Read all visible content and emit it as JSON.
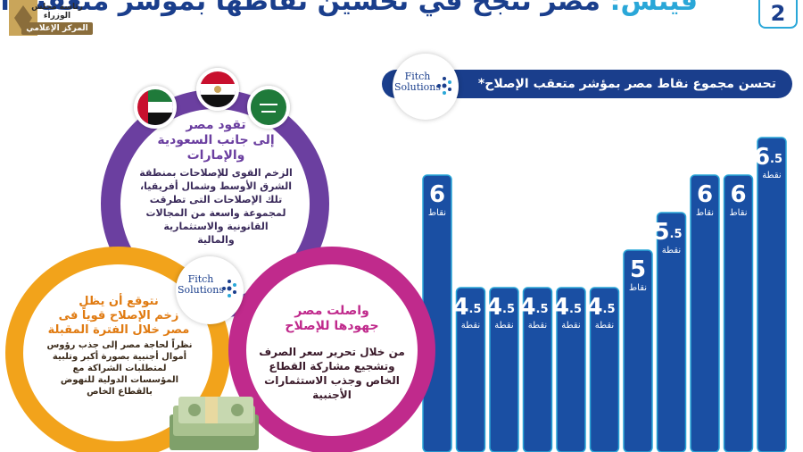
{
  "header": {
    "number": "2",
    "keyword": "فيتش:",
    "headline": "مصر تنجح في تحسين نقاطها بمؤشر متعقب الإصلاح رغم الأزمات المتتالية"
  },
  "seal": {
    "line1": "رئاسة مجلس الوزراء",
    "line2": "المركز الإعلامي"
  },
  "fitch": {
    "word1": "Fitch",
    "word2": "Solutions"
  },
  "chart_banner": "تحسن مجموع نقاط مصر بمؤشر متعقب الإصلاح*",
  "chart_data": {
    "type": "bar",
    "title": "تحسن مجموع نقاط مصر بمؤشر متعقب الإصلاح*",
    "values": [
      6,
      4.5,
      4.5,
      4.5,
      4.5,
      4.5,
      5,
      5.5,
      6,
      6,
      6.5
    ],
    "labels": [
      "6",
      "4.5",
      "4.5",
      "4.5",
      "4.5",
      "4.5",
      "5",
      "5.5",
      "6",
      "6",
      "6.5"
    ],
    "units": [
      "نقاط",
      "نقطة",
      "نقطة",
      "نقطة",
      "نقطة",
      "نقطة",
      "نقاط",
      "نقطة",
      "نقاط",
      "نقاط",
      "نقطة"
    ],
    "bar_color": "#1a4fa3"
  },
  "purple_circle": {
    "heading": [
      "تقود مصر",
      "إلى جانب السعودية",
      "والإمارات"
    ],
    "body": [
      "الزخم القوى للإصلاحات بمنطقة",
      "الشرق الأوسط وشمال أفريقيا،",
      "تلك الإصلاحات التى تطرقت",
      "لمجموعة واسعة من المجالات",
      "القانونية والاستثمارية",
      "والمالية"
    ]
  },
  "orange_circle": {
    "heading": [
      "نتوقع أن يظل",
      "زخم الإصلاح قوياً فى",
      "مصر خلال الفترة المقبلة"
    ],
    "body": [
      "نظراً لحاجة مصر إلى جذب رؤوس",
      "أموال أجنبية بصورة أكبر وتلبية",
      "لمتطلبات الشراكة مع",
      "المؤسسات الدولية للنهوض",
      "بالقطاع الخاص"
    ]
  },
  "pink_circle": {
    "heading": [
      "واصلت مصر",
      "جهودها للإصلاح"
    ],
    "body": [
      "من خلال تحرير سعر الصرف",
      "وتشجيع مشاركة القطاع",
      "الخاص وجذب الاستثمارات",
      "الأجنبية"
    ]
  },
  "colors": {
    "navy": "#1a3e8c",
    "accent_blue": "#2aa7d8",
    "purple": "#6b3fa0",
    "orange": "#f2a31b",
    "pink": "#c02a8c",
    "green_flag": "#1f7a3a",
    "red_flag": "#c8102e"
  },
  "icons": {
    "flags": [
      "uae-flag-icon",
      "egypt-flag-icon",
      "saudi-flag-icon"
    ],
    "money": "money-stack-icon"
  }
}
